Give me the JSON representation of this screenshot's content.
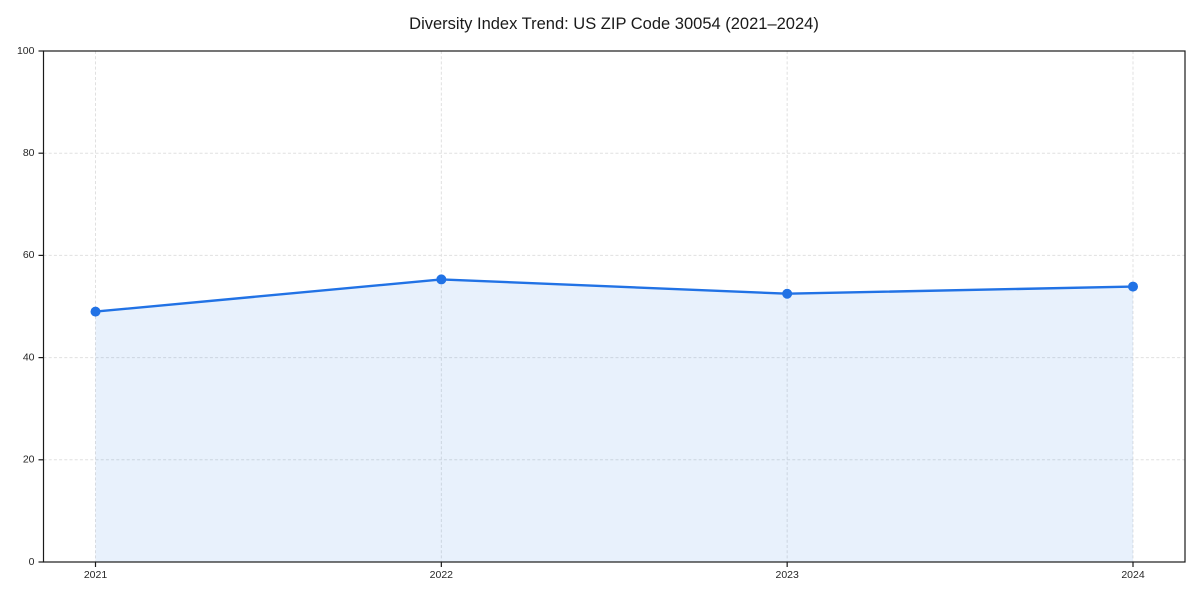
{
  "chart_data": {
    "type": "area",
    "title": "Diversity Index Trend: US ZIP Code 30054 (2021–2024)",
    "categories": [
      "2021",
      "2022",
      "2023",
      "2024"
    ],
    "values": [
      49,
      55.3,
      52.5,
      53.9
    ],
    "series_name": "Diversity Index",
    "xlabel": "",
    "ylabel": "",
    "ylim": [
      0,
      100
    ],
    "yticks": [
      0,
      20,
      40,
      60,
      80,
      100
    ],
    "grid": true,
    "grid_style": "dashed",
    "legend_position": "none",
    "marker": "circle",
    "colors": {
      "line": "#2172e5",
      "marker": "#2172e5",
      "fill": "#2172e5",
      "fill_opacity": 0.1,
      "grid": "#e0e0e0",
      "spine": "#1a1a1a",
      "tick_text": "#262626",
      "title_text": "#1a1a1a",
      "background": "#ffffff"
    }
  }
}
